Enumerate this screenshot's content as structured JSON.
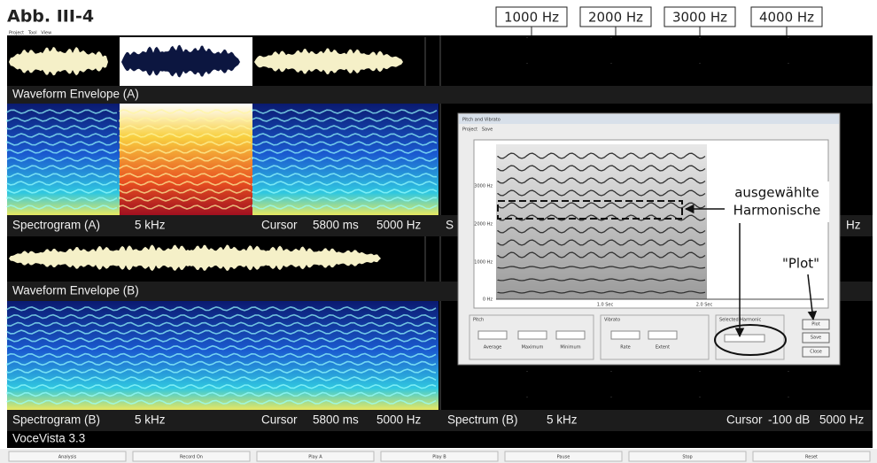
{
  "figure_label": "Abb. III-4",
  "frequency_markers": [
    "1000 Hz",
    "2000 Hz",
    "3000 Hz",
    "4000 Hz"
  ],
  "menu": "Project   Tool   View",
  "panel_a": {
    "waveform": "Waveform Envelope (A)",
    "spectrogram": "Spectrogram (A)",
    "range": "5 kHz",
    "cursor": "Cursor",
    "cursor_time": "5800 ms",
    "cursor_freq": "5000 Hz",
    "spectrum_cut": "S",
    "spectrum_end": "Hz"
  },
  "panel_b": {
    "waveform": "Waveform Envelope (B)",
    "spectrogram": "Spectrogram (B)",
    "range": "5 kHz",
    "cursor": "Cursor",
    "cursor_time": "5800 ms",
    "cursor_freq": "5000 Hz",
    "spectrum": "Spectrum (B)",
    "spectrum_range": "5 kHz",
    "spectrum_cursor": "Cursor",
    "spectrum_level": "-100 dB",
    "spectrum_freq": "5000 Hz"
  },
  "app_name": "VoceVista 3.3",
  "dialog": {
    "title": "Pitch and Vibrato",
    "menu": "Project   Save",
    "y_labels": [
      "3000 Hz",
      "2000 Hz",
      "1000 Hz",
      "0 Hz"
    ],
    "x_labels": [
      "1.0 Sec",
      "2.0 Sec"
    ],
    "groups": [
      "Pitch",
      "Vibrato",
      "Selected Harmonic"
    ],
    "fields": [
      "Average",
      "Maximum",
      "Minimum",
      "Rate",
      "Extent"
    ],
    "buttons": [
      "Plot",
      "Save",
      "Close"
    ]
  },
  "annotations": {
    "harmonic_line1": "ausgewählte",
    "harmonic_line2": "Harmonische",
    "plot": "\"Plot\""
  },
  "toolbar": [
    "Analysis",
    "Record On",
    "Play A",
    "Play B",
    "Pause",
    "Stop",
    "Reset"
  ]
}
